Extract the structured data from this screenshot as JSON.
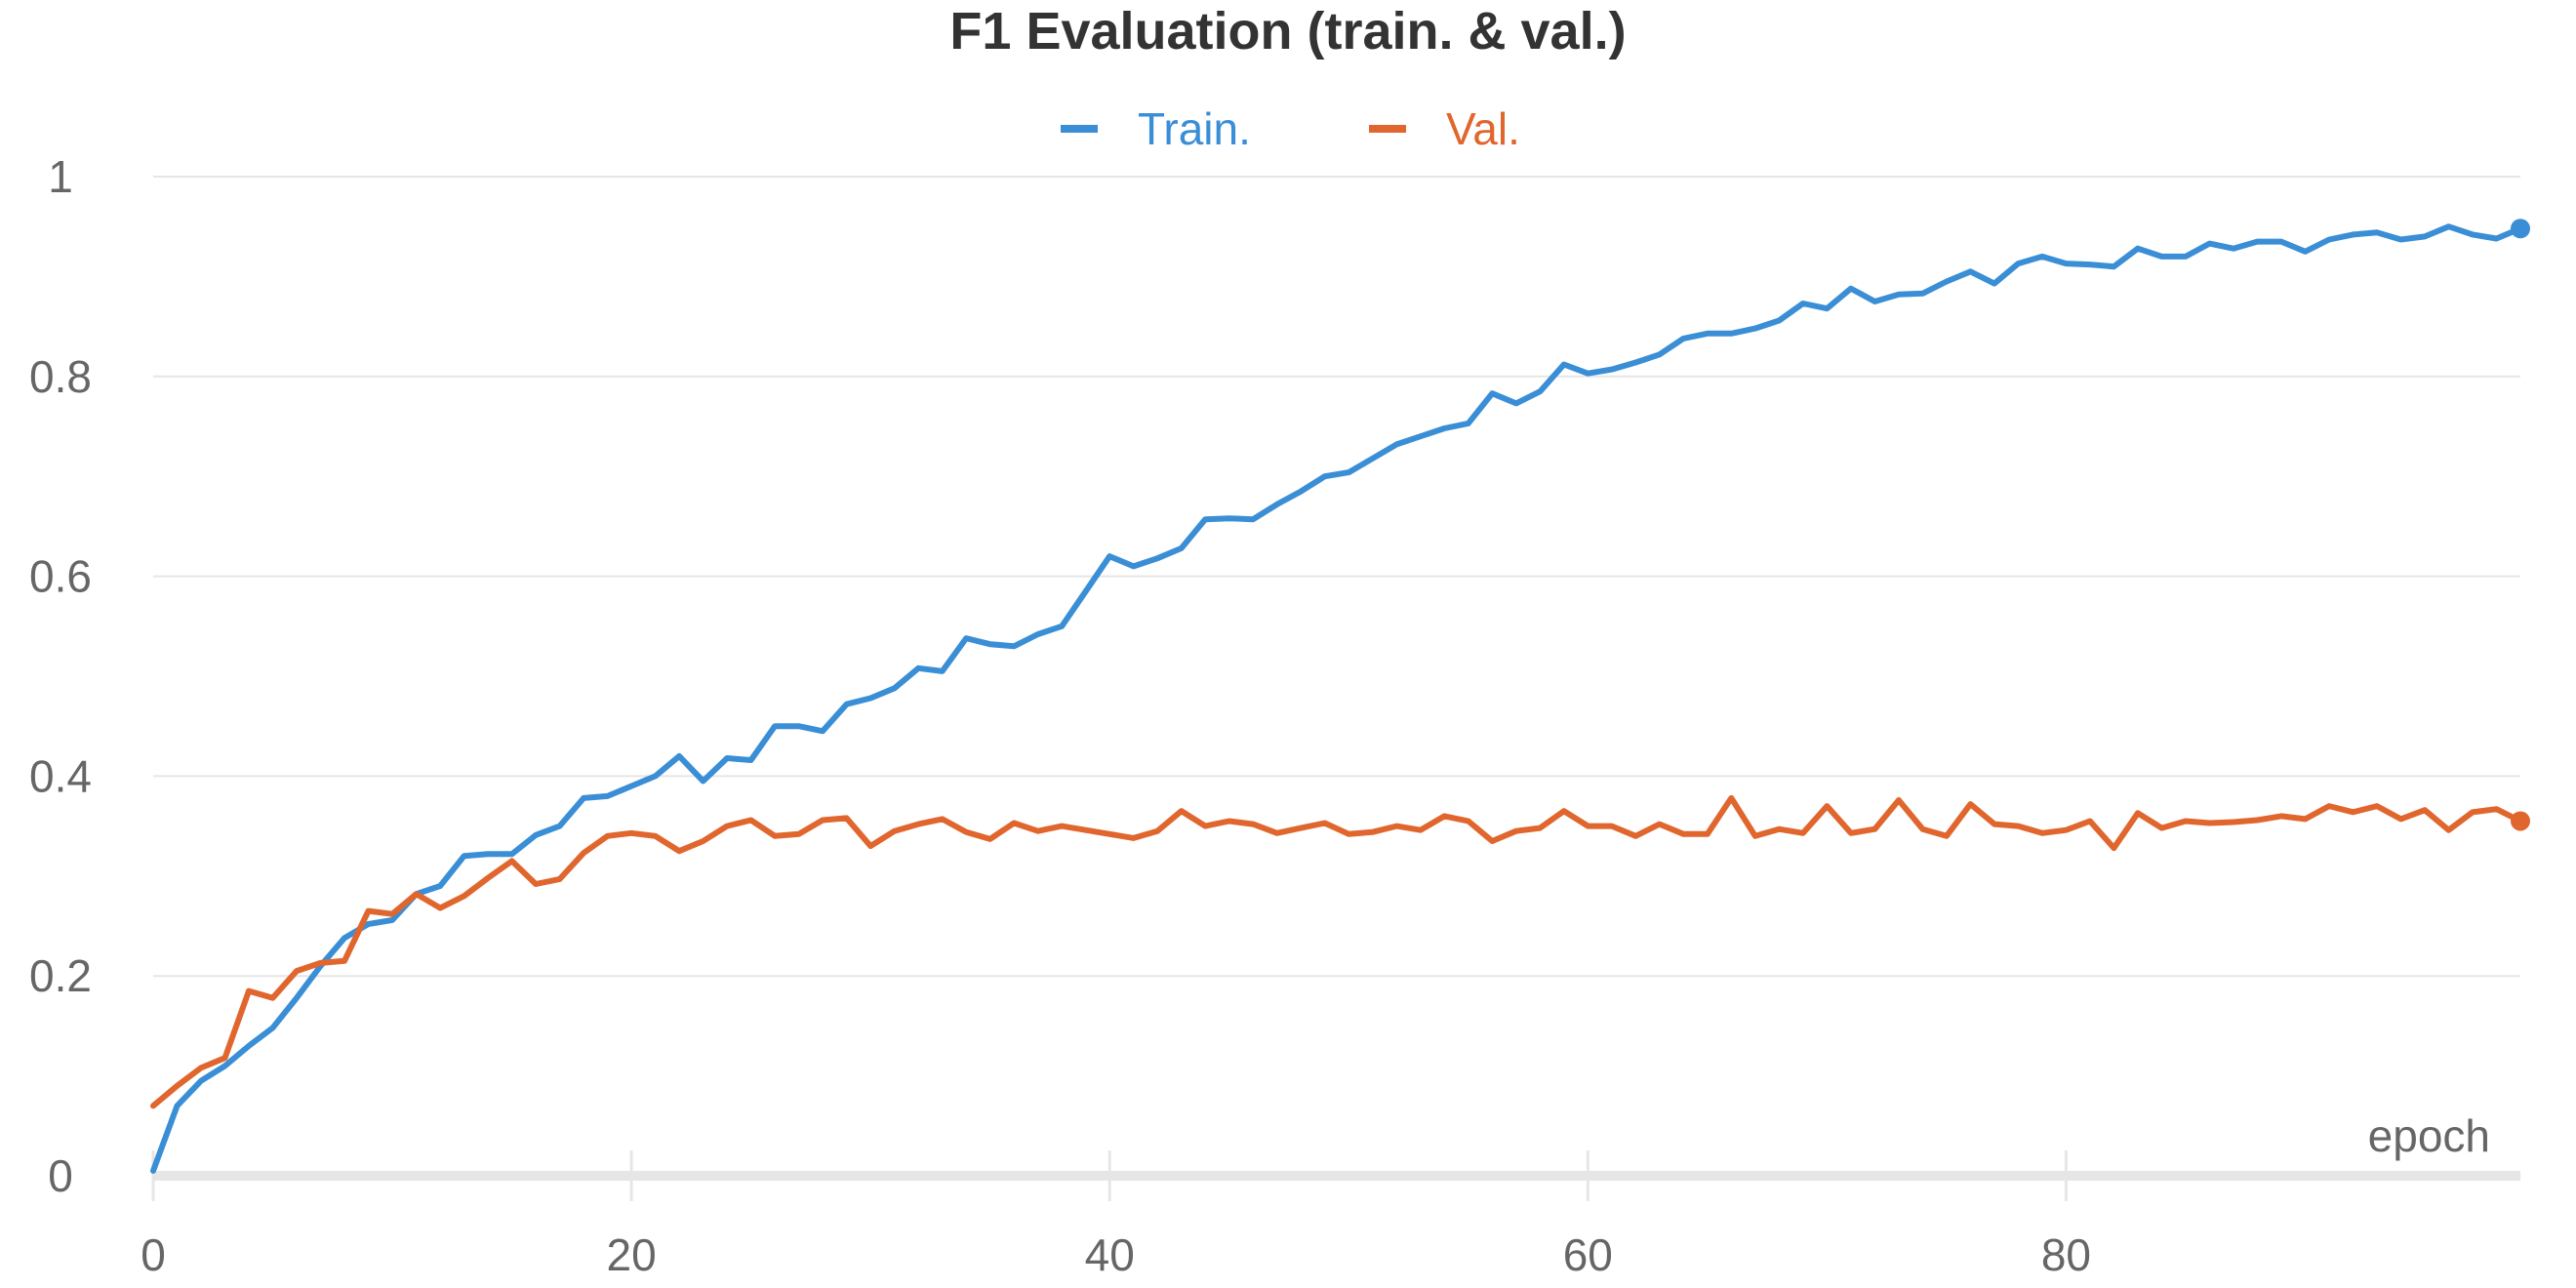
{
  "chart_data": {
    "type": "line",
    "title": "F1 Evaluation (train. & val.)",
    "xlabel": "epoch",
    "ylabel": "",
    "xlim": [
      0,
      99
    ],
    "ylim": [
      0,
      1
    ],
    "x_ticks": [
      "0",
      "20",
      "40",
      "60",
      "80"
    ],
    "x_tick_values": [
      0,
      20,
      40,
      60,
      80
    ],
    "y_ticks": [
      "0",
      "0.2",
      "0.4",
      "0.6",
      "0.8",
      "1"
    ],
    "y_tick_values": [
      0,
      0.2,
      0.4,
      0.6,
      0.8,
      1
    ],
    "grid": "horizontal",
    "legend_position": "top-center",
    "x": [
      0,
      1,
      2,
      3,
      4,
      5,
      6,
      7,
      8,
      9,
      10,
      11,
      12,
      13,
      14,
      15,
      16,
      17,
      18,
      19,
      20,
      21,
      22,
      23,
      24,
      25,
      26,
      27,
      28,
      29,
      30,
      31,
      32,
      33,
      34,
      35,
      36,
      37,
      38,
      39,
      40,
      41,
      42,
      43,
      44,
      45,
      46,
      47,
      48,
      49,
      50,
      51,
      52,
      53,
      54,
      55,
      56,
      57,
      58,
      59,
      60,
      61,
      62,
      63,
      64,
      65,
      66,
      67,
      68,
      69,
      70,
      71,
      72,
      73,
      74,
      75,
      76,
      77,
      78,
      79,
      80,
      81,
      82,
      83,
      84,
      85,
      86,
      87,
      88,
      89,
      90,
      91,
      92,
      93,
      94,
      95,
      96,
      97,
      98,
      99
    ],
    "series": [
      {
        "name": "Train.",
        "color": "#3a8ed6",
        "values": [
          0.005,
          0.07,
          0.095,
          0.11,
          0.13,
          0.148,
          0.178,
          0.21,
          0.238,
          0.252,
          0.256,
          0.282,
          0.29,
          0.32,
          0.322,
          0.322,
          0.341,
          0.35,
          0.378,
          0.38,
          0.39,
          0.4,
          0.42,
          0.395,
          0.418,
          0.416,
          0.45,
          0.45,
          0.445,
          0.472,
          0.478,
          0.488,
          0.508,
          0.505,
          0.538,
          0.532,
          0.53,
          0.542,
          0.55,
          0.585,
          0.62,
          0.61,
          0.618,
          0.628,
          0.657,
          0.658,
          0.657,
          0.672,
          0.685,
          0.7,
          0.704,
          0.718,
          0.732,
          0.74,
          0.748,
          0.753,
          0.783,
          0.773,
          0.785,
          0.812,
          0.803,
          0.807,
          0.814,
          0.822,
          0.838,
          0.843,
          0.843,
          0.848,
          0.856,
          0.873,
          0.868,
          0.888,
          0.875,
          0.882,
          0.883,
          0.895,
          0.905,
          0.893,
          0.913,
          0.92,
          0.913,
          0.912,
          0.91,
          0.928,
          0.92,
          0.92,
          0.933,
          0.928,
          0.935,
          0.935,
          0.925,
          0.937,
          0.942,
          0.944,
          0.937,
          0.94,
          0.95,
          0.942,
          0.938,
          0.948
        ]
      },
      {
        "name": "Val.",
        "color": "#e0662e",
        "values": [
          0.07,
          0.09,
          0.108,
          0.118,
          0.185,
          0.178,
          0.205,
          0.213,
          0.215,
          0.265,
          0.262,
          0.282,
          0.268,
          0.28,
          0.298,
          0.315,
          0.292,
          0.297,
          0.323,
          0.34,
          0.343,
          0.34,
          0.325,
          0.335,
          0.35,
          0.356,
          0.34,
          0.342,
          0.356,
          0.358,
          0.33,
          0.345,
          0.352,
          0.357,
          0.344,
          0.337,
          0.353,
          0.345,
          0.35,
          0.346,
          0.342,
          0.338,
          0.345,
          0.365,
          0.35,
          0.355,
          0.352,
          0.343,
          0.348,
          0.353,
          0.342,
          0.344,
          0.35,
          0.346,
          0.36,
          0.355,
          0.335,
          0.345,
          0.348,
          0.365,
          0.35,
          0.35,
          0.34,
          0.352,
          0.342,
          0.342,
          0.378,
          0.34,
          0.347,
          0.343,
          0.37,
          0.343,
          0.347,
          0.376,
          0.347,
          0.34,
          0.372,
          0.352,
          0.35,
          0.343,
          0.346,
          0.355,
          0.328,
          0.363,
          0.348,
          0.355,
          0.353,
          0.354,
          0.356,
          0.36,
          0.357,
          0.37,
          0.364,
          0.37,
          0.357,
          0.366,
          0.346,
          0.364,
          0.367,
          0.355
        ]
      }
    ]
  }
}
